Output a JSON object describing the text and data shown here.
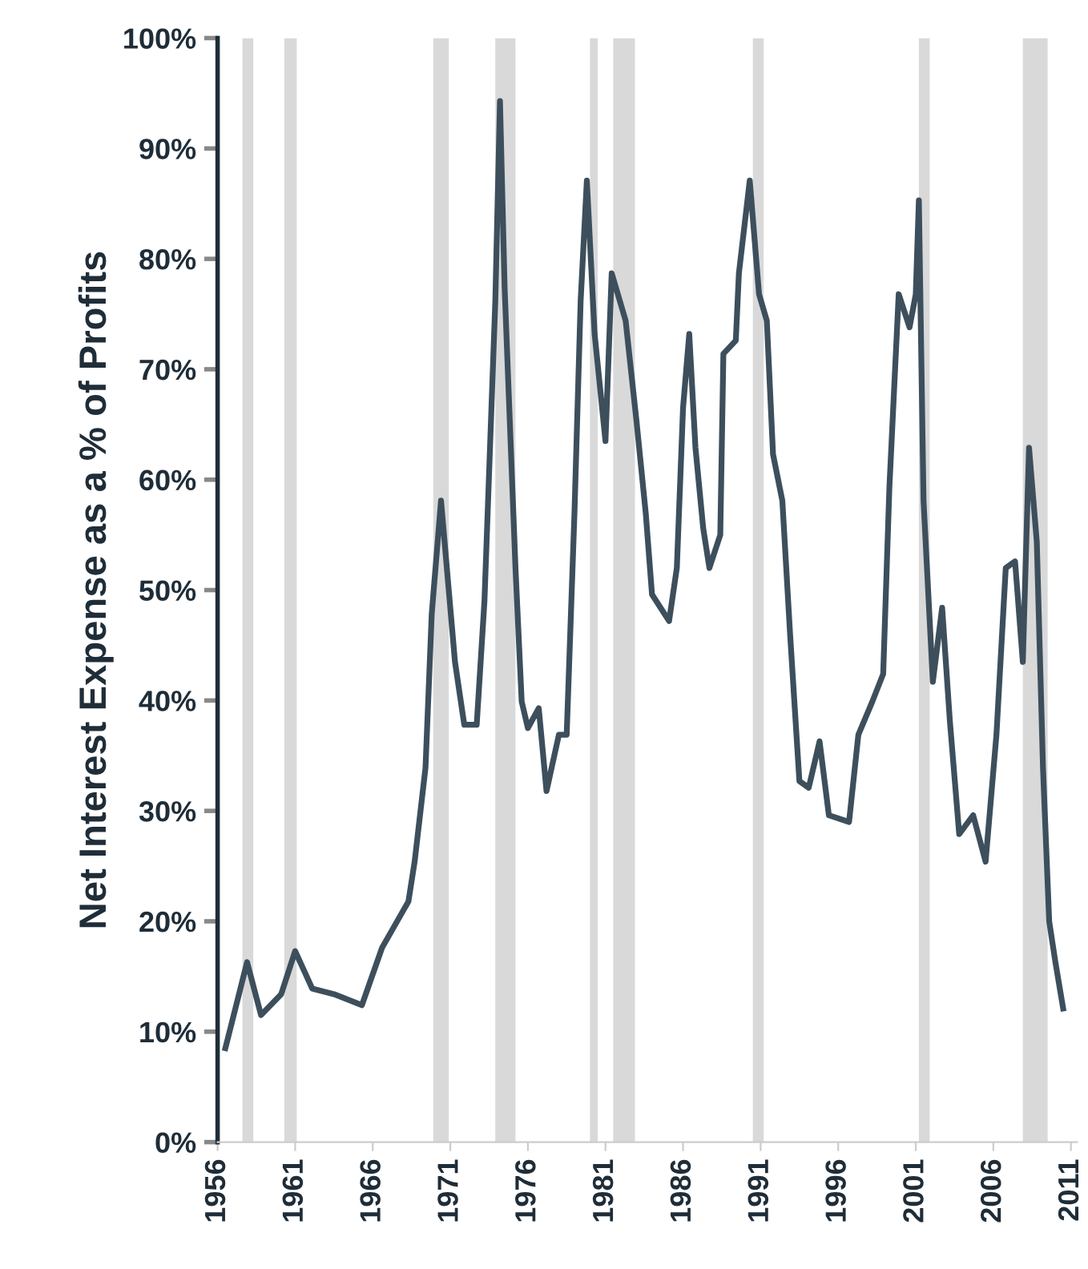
{
  "chart_data": {
    "type": "line",
    "ylabel": "Net Interest Expense as a % of Profits",
    "x": [
      1956.5,
      1957.9,
      1958.8,
      1960.1,
      1961.0,
      1962.1,
      1963.5,
      1965.3,
      1966.6,
      1968.3,
      1968.7,
      1969.4,
      1969.8,
      1970.4,
      1971.3,
      1971.9,
      1972.7,
      1973.2,
      1973.9,
      1974.2,
      1974.5,
      1975.2,
      1975.6,
      1976.0,
      1976.7,
      1977.2,
      1978.0,
      1978.5,
      1979.0,
      1979.4,
      1979.8,
      1980.3,
      1981.0,
      1981.4,
      1982.3,
      1983.0,
      1983.6,
      1984.0,
      1985.1,
      1985.6,
      1986.0,
      1986.4,
      1986.8,
      1987.3,
      1987.7,
      1988.4,
      1988.6,
      1989.4,
      1989.6,
      1990.3,
      1990.9,
      1991.4,
      1991.8,
      1992.4,
      1992.9,
      1993.5,
      1994.1,
      1994.8,
      1995.4,
      1996.7,
      1997.3,
      1998.2,
      1998.9,
      1999.3,
      1999.9,
      2000.6,
      2001.0,
      2001.2,
      2001.5,
      2002.1,
      2002.7,
      2003.2,
      2003.8,
      2004.7,
      2005.5,
      2006.2,
      2006.8,
      2007.4,
      2007.9,
      2008.3,
      2008.8,
      2009.2,
      2009.6,
      2010.0,
      2010.5
    ],
    "series": [
      {
        "color": "#3d4f5c",
        "values": [
          8.5,
          16.3,
          11.5,
          13.4,
          17.3,
          13.9,
          13.4,
          12.4,
          17.6,
          21.8,
          25.4,
          33.9,
          47.8,
          58.1,
          43.5,
          37.8,
          37.8,
          49.0,
          76.2,
          94.3,
          77.4,
          52.0,
          39.9,
          37.5,
          39.3,
          31.8,
          36.9,
          36.9,
          56.9,
          76.2,
          87.1,
          73.2,
          63.5,
          78.7,
          74.4,
          65.3,
          56.9,
          49.6,
          47.2,
          52.0,
          66.5,
          73.2,
          62.9,
          55.6,
          52.0,
          55.0,
          71.4,
          72.6,
          78.7,
          87.1,
          76.8,
          74.4,
          62.3,
          58.1,
          46.0,
          32.7,
          32.1,
          36.3,
          29.6,
          29.0,
          36.9,
          39.9,
          42.4,
          59.3,
          76.8,
          73.8,
          76.8,
          85.3,
          58.1,
          41.7,
          48.4,
          38.1,
          27.9,
          29.6,
          25.4,
          36.9,
          52.0,
          52.6,
          43.5,
          62.9,
          54.4,
          33.9,
          20.0,
          16.3,
          12.1
        ]
      }
    ],
    "xlim": [
      1956,
      2011.4
    ],
    "xticks": [
      1956,
      1961,
      1966,
      1971,
      1976,
      1981,
      1986,
      1991,
      1996,
      2001,
      2006,
      2011
    ],
    "ylim": [
      0,
      100
    ],
    "yticks": [
      {
        "value": 0,
        "label": "0%"
      },
      {
        "value": 10,
        "label": "10%"
      },
      {
        "value": 20,
        "label": "20%"
      },
      {
        "value": 30,
        "label": "30%"
      },
      {
        "value": 40,
        "label": "40%"
      },
      {
        "value": 50,
        "label": "50%"
      },
      {
        "value": 60,
        "label": "60%"
      },
      {
        "value": 70,
        "label": "70%"
      },
      {
        "value": 80,
        "label": "80%"
      },
      {
        "value": 90,
        "label": "90%"
      },
      {
        "value": 100,
        "label": "100%"
      }
    ],
    "bands": [
      {
        "axis": "x",
        "from": 1957.6,
        "to": 1958.3,
        "color": "#d9d9d9"
      },
      {
        "axis": "x",
        "from": 1960.3,
        "to": 1961.1,
        "color": "#d9d9d9"
      },
      {
        "axis": "x",
        "from": 1969.9,
        "to": 1970.9,
        "color": "#d9d9d9"
      },
      {
        "axis": "x",
        "from": 1973.9,
        "to": 1975.2,
        "color": "#d9d9d9"
      },
      {
        "axis": "x",
        "from": 1980.0,
        "to": 1980.5,
        "color": "#d9d9d9"
      },
      {
        "axis": "x",
        "from": 1981.5,
        "to": 1982.9,
        "color": "#d9d9d9"
      },
      {
        "axis": "x",
        "from": 1990.5,
        "to": 1991.2,
        "color": "#d9d9d9"
      },
      {
        "axis": "x",
        "from": 2001.2,
        "to": 2001.9,
        "color": "#d9d9d9"
      },
      {
        "axis": "x",
        "from": 2007.9,
        "to": 2009.5,
        "color": "#d9d9d9"
      }
    ],
    "grid": false,
    "marker": "none",
    "line_style": "solid"
  }
}
